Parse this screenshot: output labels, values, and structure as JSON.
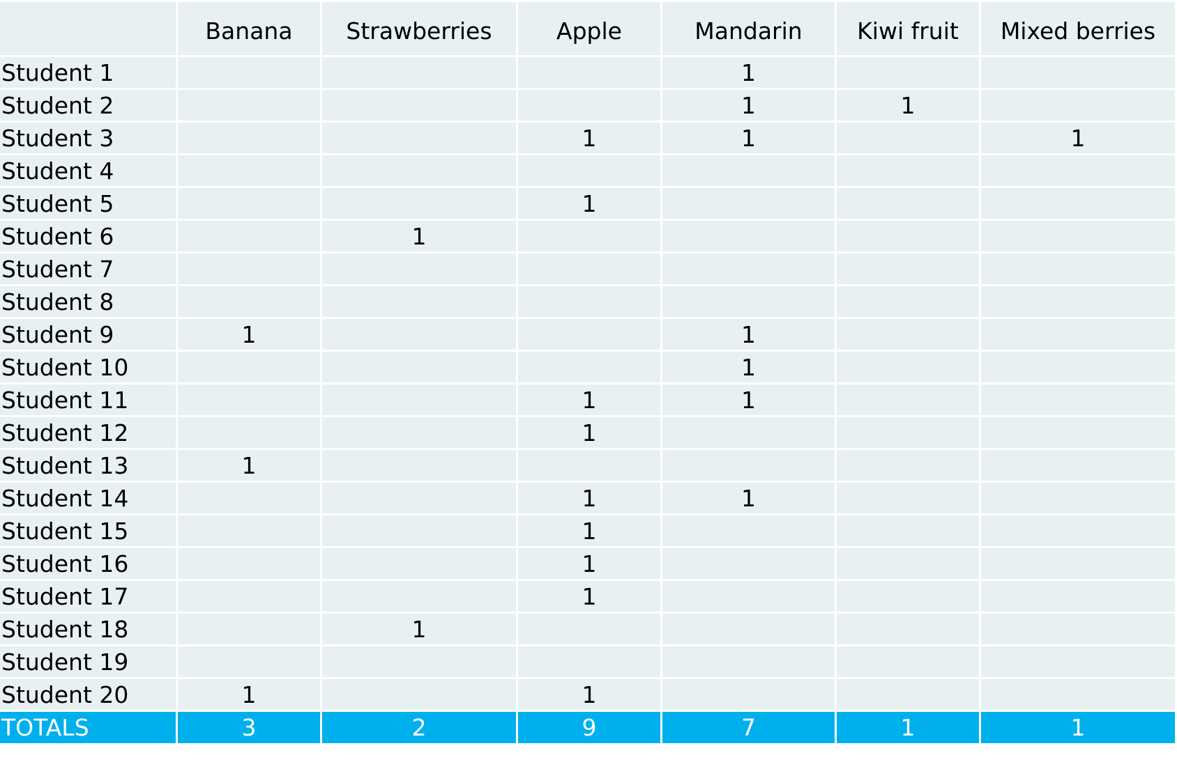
{
  "table": {
    "columns": [
      "",
      "Banana",
      "Strawberries",
      "Apple",
      "Mandarin",
      "Kiwi fruit",
      "Mixed berries"
    ],
    "rows": [
      {
        "label": "Student 1",
        "values": [
          "",
          "",
          "",
          "1",
          "",
          ""
        ]
      },
      {
        "label": "Student 2",
        "values": [
          "",
          "",
          "",
          "1",
          "1",
          ""
        ]
      },
      {
        "label": "Student 3",
        "values": [
          "",
          "",
          "1",
          "1",
          "",
          "1"
        ]
      },
      {
        "label": "Student 4",
        "values": [
          "",
          "",
          "",
          "",
          "",
          ""
        ]
      },
      {
        "label": "Student 5",
        "values": [
          "",
          "",
          "1",
          "",
          "",
          ""
        ]
      },
      {
        "label": "Student 6",
        "values": [
          "",
          "1",
          "",
          "",
          "",
          ""
        ]
      },
      {
        "label": "Student 7",
        "values": [
          "",
          "",
          "",
          "",
          "",
          ""
        ]
      },
      {
        "label": "Student 8",
        "values": [
          "",
          "",
          "",
          "",
          "",
          ""
        ]
      },
      {
        "label": "Student 9",
        "values": [
          "1",
          "",
          "",
          "1",
          "",
          ""
        ]
      },
      {
        "label": "Student 10",
        "values": [
          "",
          "",
          "",
          "1",
          "",
          ""
        ]
      },
      {
        "label": "Student 11",
        "values": [
          "",
          "",
          "1",
          "1",
          "",
          ""
        ]
      },
      {
        "label": "Student 12",
        "values": [
          "",
          "",
          "1",
          "",
          "",
          ""
        ]
      },
      {
        "label": "Student 13",
        "values": [
          "1",
          "",
          "",
          "",
          "",
          ""
        ]
      },
      {
        "label": "Student 14",
        "values": [
          "",
          "",
          "1",
          "1",
          "",
          ""
        ]
      },
      {
        "label": "Student 15",
        "values": [
          "",
          "",
          "1",
          "",
          "",
          ""
        ]
      },
      {
        "label": "Student 16",
        "values": [
          "",
          "",
          "1",
          "",
          "",
          ""
        ]
      },
      {
        "label": "Student 17",
        "values": [
          "",
          "",
          "1",
          "",
          "",
          ""
        ]
      },
      {
        "label": "Student 18",
        "values": [
          "",
          "1",
          "",
          "",
          "",
          ""
        ]
      },
      {
        "label": "Student 19",
        "values": [
          "",
          "",
          "",
          "",
          "",
          ""
        ]
      },
      {
        "label": "Student 20",
        "values": [
          "1",
          "",
          "1",
          "",
          "",
          ""
        ]
      }
    ],
    "totals": {
      "label": "TOTALS",
      "values": [
        "3",
        "2",
        "9",
        "7",
        "1",
        "1"
      ]
    }
  },
  "colors": {
    "cell_background": "#e8f0f1",
    "totals_background": "#00b0ec",
    "totals_text": "#ffffff",
    "grid_lines": "#ffffff"
  }
}
